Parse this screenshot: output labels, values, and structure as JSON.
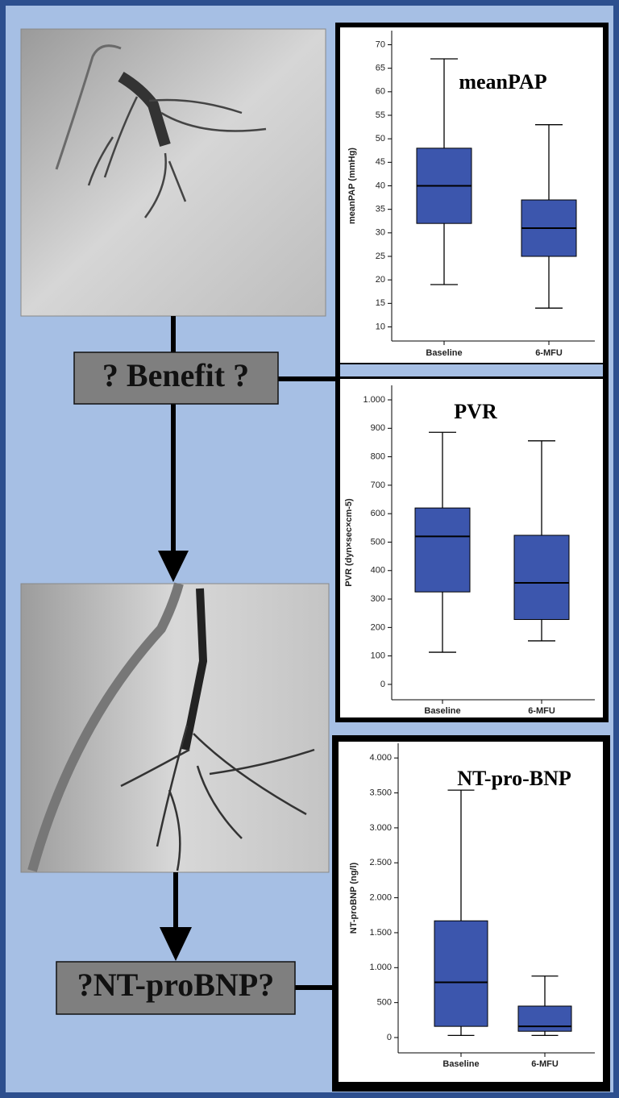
{
  "labels": [
    "? Benefit ?",
    "?NT-proBNP?"
  ],
  "chart_data": [
    {
      "type": "box",
      "title": "meanPAP",
      "y_label": "meanPAP (mmHg)",
      "categories": [
        "Baseline",
        "6-MFU"
      ],
      "color": "#3c56ad",
      "min": [
        19,
        14
      ],
      "q1": [
        32,
        25
      ],
      "median": [
        40,
        31
      ],
      "q3": [
        48,
        37
      ],
      "max": [
        67,
        53
      ],
      "ylim": [
        7,
        73
      ],
      "yticks": [
        10,
        15,
        20,
        25,
        30,
        35,
        40,
        45,
        50,
        55,
        60,
        65,
        70
      ]
    },
    {
      "type": "box",
      "title": "PVR",
      "y_label": "PVR (dyn×sec×cm-5)",
      "categories": [
        "Baseline",
        "6-MFU"
      ],
      "color": "#3c56ad",
      "min": [
        113,
        153
      ],
      "q1": [
        325,
        228
      ],
      "median": [
        520,
        357
      ],
      "q3": [
        620,
        524
      ],
      "max": [
        886,
        856
      ],
      "ylim": [
        -54,
        1051
      ],
      "yticks": [
        0,
        100,
        200,
        300,
        400,
        500,
        600,
        700,
        800,
        900,
        {
          "value": 1000,
          "label": "1.000"
        }
      ]
    },
    {
      "type": "box",
      "title": "NT-pro-BNP",
      "y_label": "NT-proBNP (ng/l)",
      "categories": [
        "Baseline",
        "6-MFU"
      ],
      "color": "#3c56ad",
      "min": [
        30,
        30
      ],
      "q1": [
        160,
        90
      ],
      "median": [
        790,
        160
      ],
      "q3": [
        1670,
        450
      ],
      "max": [
        3540,
        880
      ],
      "ylim": [
        -219,
        4210
      ],
      "yticks": [
        0,
        500,
        {
          "value": 1000,
          "label": "1.000"
        },
        {
          "value": 1500,
          "label": "1.500"
        },
        {
          "value": 2000,
          "label": "2.000"
        },
        {
          "value": 2500,
          "label": "2.500"
        },
        {
          "value": 3000,
          "label": "3.000"
        },
        {
          "value": 3500,
          "label": "3.500"
        },
        {
          "value": 4000,
          "label": "4.000"
        }
      ]
    }
  ]
}
